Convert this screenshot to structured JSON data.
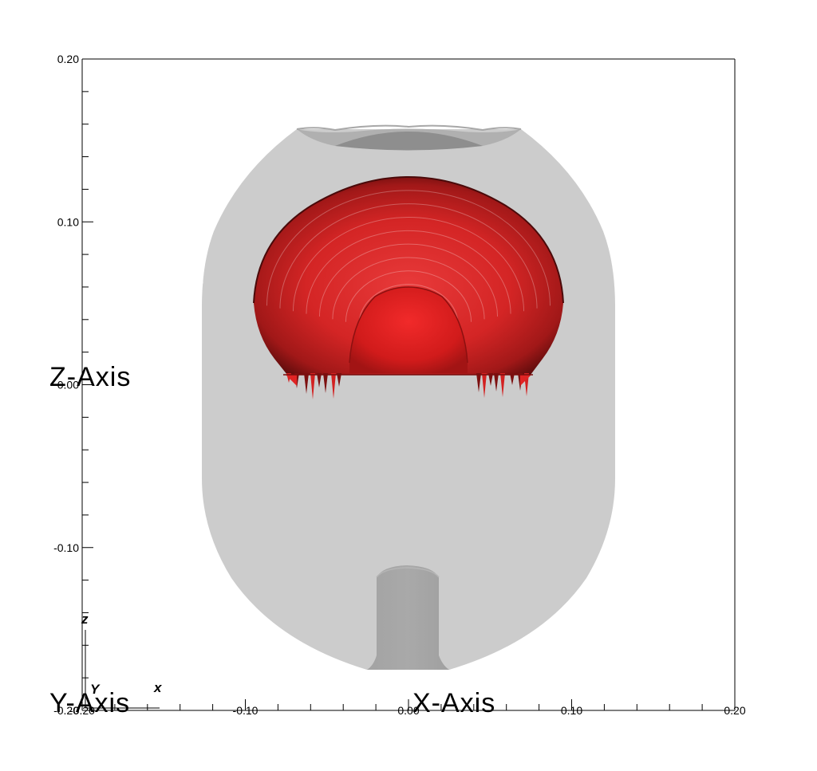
{
  "plot": {
    "x_axis_title": "X-Axis",
    "z_axis_title": "Z-Axis",
    "y_axis_title": "Y-Axis",
    "x_range": [
      -0.2,
      0.2
    ],
    "z_range": [
      -0.2,
      0.2
    ],
    "x_tick_labels": [
      {
        "label": "-0.20",
        "value": -0.2
      },
      {
        "label": "-0.10",
        "value": -0.1
      },
      {
        "label": "0.00",
        "value": 0.0
      },
      {
        "label": "0.10",
        "value": 0.1
      },
      {
        "label": "0.20",
        "value": 0.2
      }
    ],
    "z_tick_labels": [
      {
        "label": "0.20",
        "value": 0.2
      },
      {
        "label": "0.10",
        "value": 0.1
      },
      {
        "label": "0.00",
        "value": 0.0
      },
      {
        "label": "-0.10",
        "value": -0.1
      },
      {
        "label": "-0.20",
        "value": -0.2
      }
    ]
  },
  "triad": {
    "z_label": "z",
    "y_label": "Y",
    "x_label": "x"
  },
  "colors": {
    "vessel": "#cccccc",
    "vessel_dark": "#9e9e9e",
    "iso_surface": "#d32121",
    "iso_surface_dark": "#6b0d0d",
    "frame": "#000000"
  }
}
